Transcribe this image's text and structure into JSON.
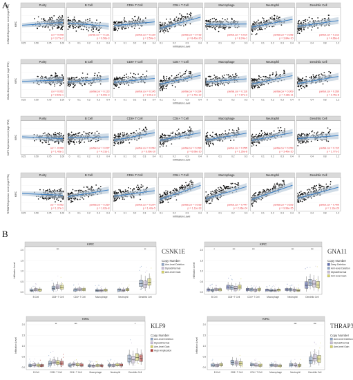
{
  "panel_a": {
    "letter": "A",
    "x_axis_title": "Infiltration Level",
    "cell_types": [
      "Purity",
      "B Cell",
      "CD8+ T Cell",
      "CD4+ T Cell",
      "Macrophage",
      "Neutrophil",
      "Dendritic Cell"
    ],
    "rows": [
      {
        "y_label": "CSNK1E Expression Level (log2 TPM)",
        "side_label": "KIRC",
        "stats": [
          {
            "cor": "cor = 0.098",
            "p": "p = 3.77e-2"
          },
          {
            "cor": "partial.cor = -0.121",
            "p": "p = 9.56e-3"
          },
          {
            "cor": "partial.cor = 0.139",
            "p": "p = 2.59e-3"
          },
          {
            "cor": "partial.cor = 0.416",
            "p": "p = 8.43e-20"
          },
          {
            "cor": "partial.cor = 0.010",
            "p": "p = 8.24e-1"
          },
          {
            "cor": "partial.cor = 0.286",
            "p": "p = 3.84e-10"
          },
          {
            "cor": "partial.cor = 0.212",
            "p": "p = 4.66e-6"
          }
        ],
        "x_ticks": [
          [
            "0.25",
            "0.50",
            "0.75",
            "1.00"
          ],
          [
            "0",
            "0.1",
            "0.2",
            "0.3",
            "0.4"
          ],
          [
            "0",
            "0.1",
            "0.2",
            "0.3",
            "0.4"
          ],
          [
            "0.1",
            "0.2",
            "0.3",
            "0.4"
          ],
          [
            "0",
            "0.1",
            "0.2",
            "0.3"
          ],
          [
            "0",
            "0.1",
            "0.2",
            "0.3",
            "0.4"
          ],
          [
            "0",
            "0.4",
            "0.8",
            "1.2"
          ]
        ]
      },
      {
        "y_label": "GNA11 Expression Level (log2 TPM)",
        "side_label": "KIRC",
        "stats": [
          {
            "cor": "cor = 0.052",
            "p": "p = 2.64e-1"
          },
          {
            "cor": "partial.cor = 0.123",
            "p": "p = 8.60e-3"
          },
          {
            "cor": "partial.cor = 0.145",
            "p": "p = 2.01e-3"
          },
          {
            "cor": "partial.cor = 0.324",
            "p": "p = 1.70e-12"
          },
          {
            "cor": "partial.cor = 0.116",
            "p": "p = 7.97e-3"
          },
          {
            "cor": "partial.cor = 0.309",
            "p": "p = 4.38e-11"
          },
          {
            "cor": "partial.cor = 0.260",
            "p": "p = 2.75e-8"
          }
        ],
        "x_ticks": [
          [
            "0.25",
            "0.50",
            "0.75",
            "1.00"
          ],
          [
            "0",
            "0.1",
            "0.2",
            "0.3",
            "0.4"
          ],
          [
            "0",
            "0.1",
            "0.2",
            "0.3",
            "0.4"
          ],
          [
            "0.1",
            "0.2",
            "0.3",
            "0.4"
          ],
          [
            "0",
            "0.1",
            "0.2",
            "0.3"
          ],
          [
            "0",
            "0.1",
            "0.2",
            "0.3",
            "0.4"
          ],
          [
            "0",
            "0.4",
            "0.8",
            "1.2"
          ]
        ]
      },
      {
        "y_label": "KLF9 Expression Level (log2 TPM)",
        "side_label": "KIRC",
        "stats": [
          {
            "cor": "cor = -0.068",
            "p": "p = 1.43e-1"
          },
          {
            "cor": "partial.cor = 0.037",
            "p": "p = 4.31e-1"
          },
          {
            "cor": "partial.cor = 0.284",
            "p": "p = 6.09e-10"
          },
          {
            "cor": "partial.cor = 0.283",
            "p": "p = 6.08e-10"
          },
          {
            "cor": "partial.cor = 0.255",
            "p": "p = 1.26e-8"
          },
          {
            "cor": "partial.cor = 0.289",
            "p": "p = 3.40e-10"
          },
          {
            "cor": "partial.cor = 0.112",
            "p": "p = 1.77e-2"
          }
        ],
        "x_ticks": [
          [
            "0.25",
            "0.50",
            "0.75",
            "1.00"
          ],
          [
            "0",
            "0.1",
            "0.2",
            "0.3",
            "0.4"
          ],
          [
            "0",
            "0.1",
            "0.2",
            "0.3",
            "0.4"
          ],
          [
            "0.1",
            "0.2",
            "0.3",
            "0.4"
          ],
          [
            "0",
            "0.1",
            "0.2",
            "0.3"
          ],
          [
            "0",
            "0.1",
            "0.2",
            "0.3",
            "0.4"
          ],
          [
            "0",
            "0.4",
            "0.8",
            "1.2"
          ]
        ]
      },
      {
        "y_label": "THRAP3 Expression Level (log2 TPM)",
        "side_label": "KIRC",
        "stats": [
          {
            "cor": "cor = -0.062",
            "p": "p = 1.37e-1"
          },
          {
            "cor": "partial.cor = 0.250",
            "p": "p = 1.62e-8"
          },
          {
            "cor": "partial.cor = 0.204",
            "p": "p = 1.43e-5"
          },
          {
            "cor": "partial.cor = 0.518",
            "p": "p = 1.11e-33"
          },
          {
            "cor": "partial.cor = 0.447",
            "p": "p = 2.06e-24"
          },
          {
            "cor": "partial.cor = 0.525",
            "p": "p = 9.99e-35"
          },
          {
            "cor": "partial.cor = 0.409",
            "p": "p = 1.11e-20"
          }
        ],
        "x_ticks": [
          [
            "0.25",
            "0.50",
            "0.75",
            "1.00"
          ],
          [
            "0",
            "0.1",
            "0.2",
            "0.3",
            "0.4"
          ],
          [
            "0",
            "0.1",
            "0.2",
            "0.3",
            "0.4"
          ],
          [
            "0.1",
            "0.2",
            "0.3",
            "0.4"
          ],
          [
            "0",
            "0.1",
            "0.2",
            "0.3"
          ],
          [
            "0",
            "0.1",
            "0.2",
            "0.3",
            "0.4"
          ],
          [
            "0",
            "0.4",
            "0.8",
            "1.2"
          ]
        ]
      }
    ]
  },
  "panel_b": {
    "letter": "B",
    "y_axis_title": "Infiltration Level",
    "categories": [
      "B Cell",
      "CD8+ T Cell",
      "CD4+ T Cell",
      "Macrophage",
      "Neutrophil",
      "Dendritic Cell"
    ],
    "legend_title": "Copy Number",
    "plots": [
      {
        "gene": "CSNK1E",
        "strip_label": "KIRC",
        "y_ticks": [
          "0.0",
          "0.5",
          "1.0",
          "1.5",
          "2.0"
        ],
        "legend": [
          "Arm-level Deletion",
          "Diploid/Normal",
          "Arm-level Gain"
        ],
        "significance": [
          "",
          "***",
          "",
          "",
          "",
          "**"
        ]
      },
      {
        "gene": "GNA11",
        "strip_label": "KIRC",
        "y_ticks": [
          "0.0",
          "0.5",
          "1.0",
          "1.5",
          "2.0"
        ],
        "legend": [
          "Deep Deletion",
          "Arm-level Deletion",
          "Diploid/Normal",
          "Arm-level Gain"
        ],
        "significance": [
          "*",
          "***",
          "***",
          "",
          "***",
          "***"
        ]
      },
      {
        "gene": "KLF9",
        "strip_label": "KIRC",
        "y_ticks": [
          "0.0",
          "0.5",
          "1.0",
          "1.5",
          "2.0"
        ],
        "legend": [
          "Arm-level Deletion",
          "Diploid/Normal",
          "Arm-level Gain",
          "High Amplication"
        ],
        "significance": [
          "",
          "**",
          "***",
          "",
          "",
          "*"
        ]
      },
      {
        "gene": "THRAP3",
        "strip_label": "KIRC",
        "y_ticks": [
          "0.0",
          "0.5",
          "1.0",
          "1.5",
          "2.0"
        ],
        "legend": [
          "Arm-level Deletion",
          "Diploid/Normal",
          "Arm-level Gain"
        ],
        "significance": [
          "",
          "",
          "",
          "",
          "***",
          "***"
        ]
      }
    ]
  },
  "colors": {
    "strip": "#d9d9d9",
    "point": "#111111",
    "fit_line": "#3b7fc4",
    "fit_band": "#b8c9d8",
    "stat_text": "#e8333a",
    "panel_bg": "#ffffff",
    "deep_deletion": "#5d6cb2",
    "arm_deletion": "#8fa7c9",
    "diploid": "#c8bdd8",
    "arm_gain": "#d6d36a",
    "high_amp": "#b33a35"
  },
  "chart_data": [
    {
      "type": "scatter",
      "panel": "A",
      "facets_rows": [
        "CSNK1E",
        "GNA11",
        "KLF9",
        "THRAP3"
      ],
      "facets_cols": [
        "Purity",
        "B Cell",
        "CD8+ T Cell",
        "CD4+ T Cell",
        "Macrophage",
        "Neutrophil",
        "Dendritic Cell"
      ],
      "xlabel": "Infiltration Level",
      "partial_cor": [
        [
          0.098,
          -0.121,
          0.139,
          0.416,
          0.01,
          0.286,
          0.212
        ],
        [
          0.052,
          0.123,
          0.145,
          0.324,
          0.116,
          0.309,
          0.26
        ],
        [
          -0.068,
          0.037,
          0.284,
          0.283,
          0.255,
          0.289,
          0.112
        ],
        [
          -0.062,
          0.25,
          0.204,
          0.518,
          0.447,
          0.525,
          0.409
        ]
      ]
    },
    {
      "type": "box",
      "panel": "B",
      "genes": [
        "CSNK1E",
        "GNA11",
        "KLF9",
        "THRAP3"
      ],
      "categories": [
        "B Cell",
        "CD8+ T Cell",
        "CD4+ T Cell",
        "Macrophage",
        "Neutrophil",
        "Dendritic Cell"
      ],
      "ylabel": "Infiltration Level",
      "ylim": [
        0,
        2.2
      ],
      "medians": [
        0.12,
        0.25,
        0.13,
        0.1,
        0.12,
        0.45
      ]
    }
  ]
}
